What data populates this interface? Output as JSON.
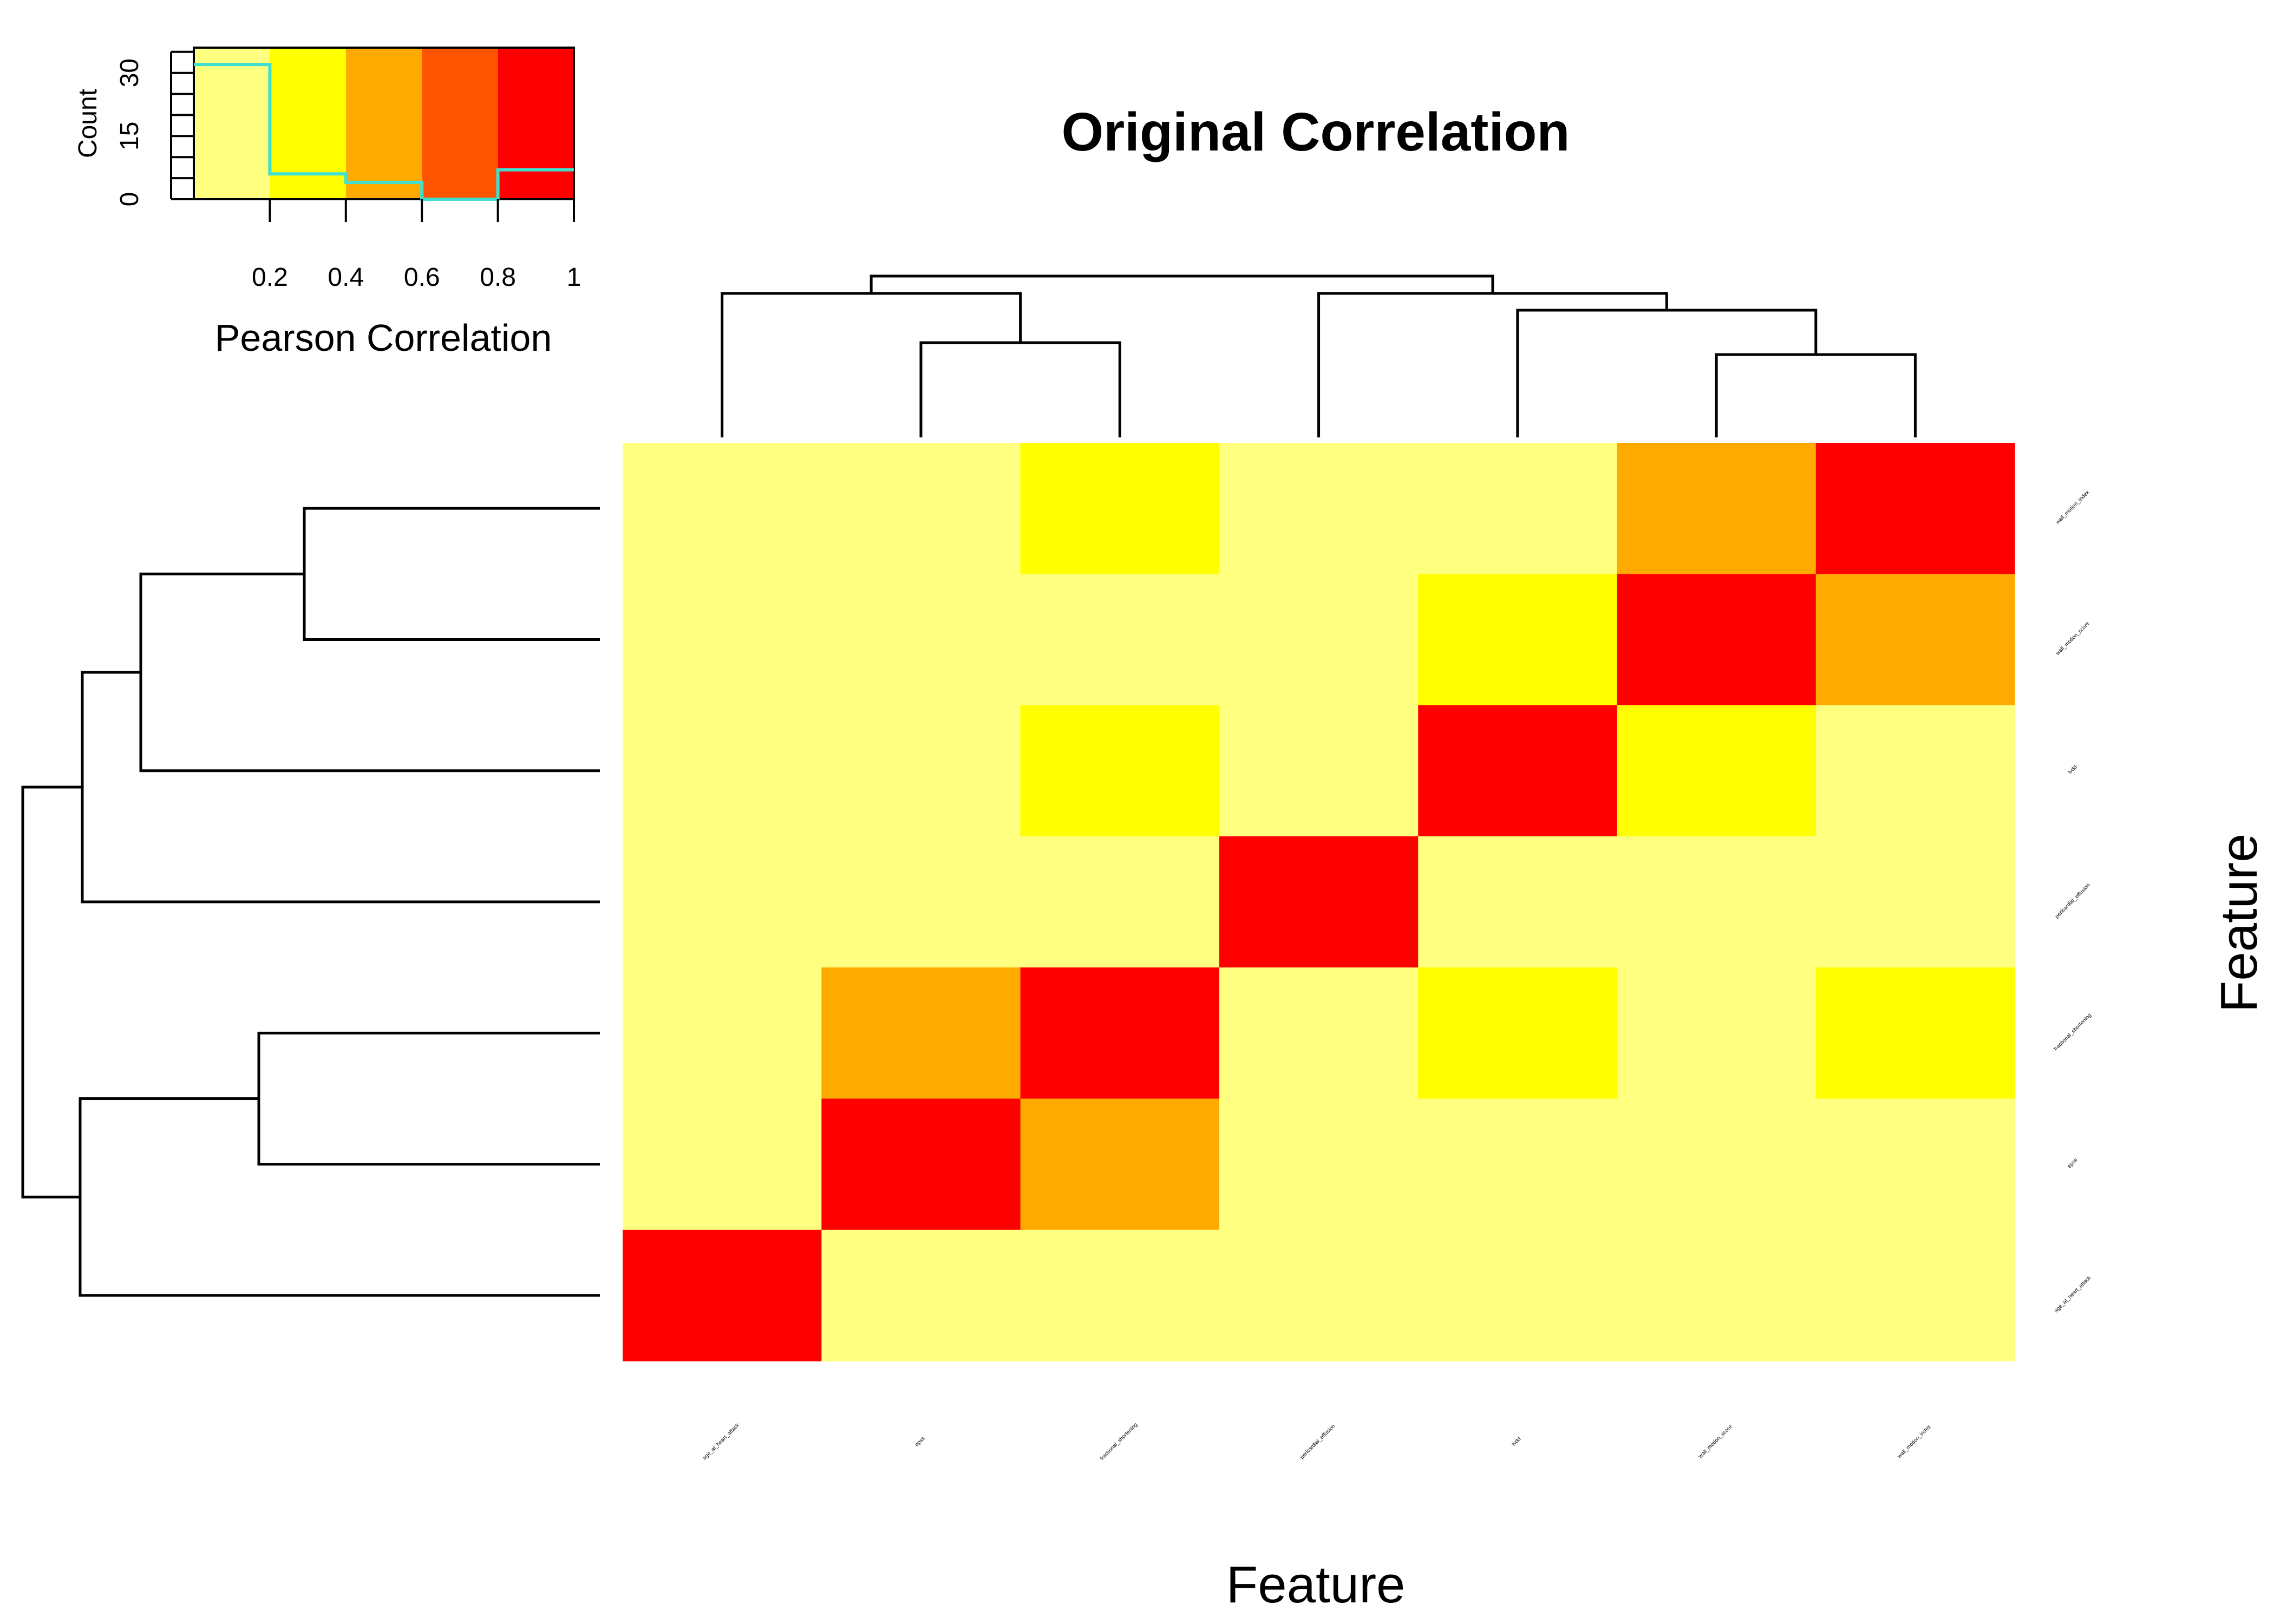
{
  "chart_data": {
    "type": "heatmap",
    "title": "Original Correlation",
    "xlabel": "Feature",
    "ylabel": "Feature",
    "columns": [
      "age_at_heart_attack",
      "epss",
      "fractional_shortening",
      "pericardial_effusion",
      "lvdd",
      "wall_motion_score",
      "wall_motion_index"
    ],
    "rows_top_to_bottom": [
      "wall_motion_index",
      "wall_motion_score",
      "lvdd",
      "pericardial_effusion",
      "fractional_shortening",
      "epss",
      "age_at_heart_attack"
    ],
    "bins": [
      0,
      0.2,
      0.4,
      0.6,
      0.8,
      1
    ],
    "colors": [
      "#FFFF80",
      "#FFFF00",
      "#FFAA00",
      "#FF5500",
      "#FF0000"
    ],
    "bin_index_matrix": [
      [
        0,
        0,
        1,
        0,
        0,
        2,
        4
      ],
      [
        0,
        0,
        0,
        0,
        1,
        4,
        2
      ],
      [
        0,
        0,
        1,
        0,
        4,
        1,
        0
      ],
      [
        0,
        0,
        0,
        4,
        0,
        0,
        0
      ],
      [
        0,
        2,
        4,
        0,
        1,
        0,
        1
      ],
      [
        0,
        4,
        2,
        0,
        0,
        0,
        0
      ],
      [
        4,
        0,
        0,
        0,
        0,
        0,
        0
      ]
    ],
    "color_key": {
      "xlabel": "Pearson Correlation",
      "ylabel": "Count",
      "x_ticks": [
        "0.2",
        "0.4",
        "0.6",
        "0.8",
        "1"
      ],
      "y_ticks": [
        "0",
        "15",
        "30"
      ],
      "y_max": 36,
      "histogram_counts": [
        32,
        6,
        4,
        0,
        7
      ],
      "histogram_color": "#40E0D0"
    }
  }
}
